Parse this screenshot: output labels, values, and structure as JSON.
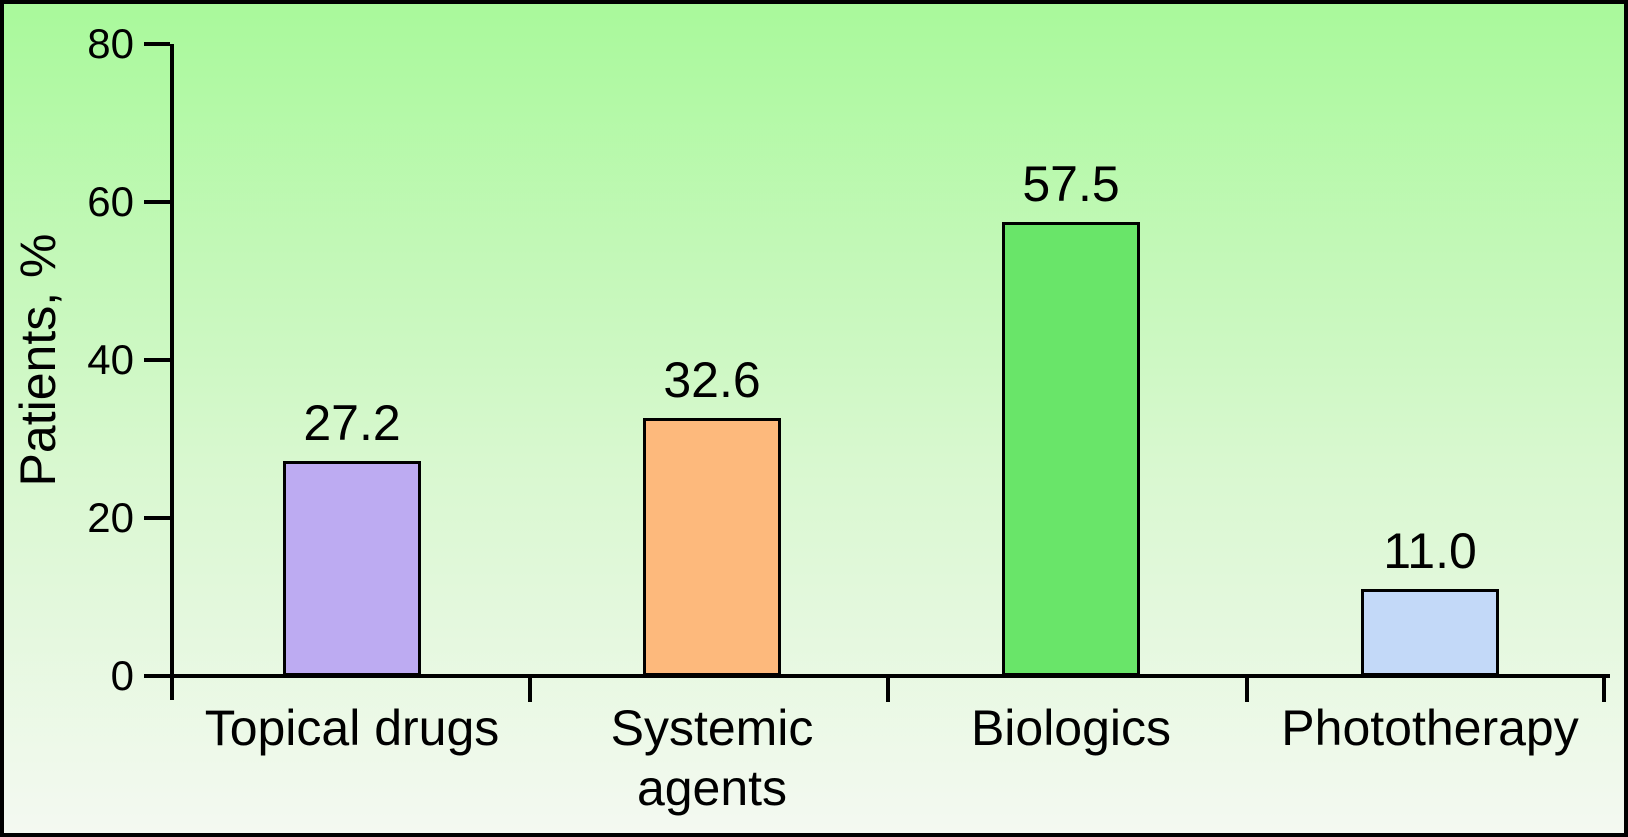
{
  "chart_data": {
    "type": "bar",
    "title": "",
    "xlabel": "",
    "ylabel": "Patients, %",
    "categories": [
      "Topical drugs",
      "Systemic agents",
      "Biologics",
      "Phototherapy"
    ],
    "values": [
      27.2,
      32.6,
      57.5,
      11.0
    ],
    "value_labels": [
      "27.2",
      "32.6",
      "57.5",
      "11.0"
    ],
    "ylim": [
      0,
      80
    ],
    "yticks": [
      0,
      20,
      40,
      60,
      80
    ],
    "ytick_labels": [
      "0",
      "20",
      "40",
      "60",
      "80"
    ],
    "grid": false,
    "legend": null,
    "bar_colors": [
      "#bdabf2",
      "#fdb97c",
      "#69e569",
      "#c3d9f8"
    ],
    "bar_border_color": "#000000",
    "axis_color": "#000000",
    "background_gradient_top": "#a9f99b",
    "background_gradient_bottom": "#f4f9f1",
    "frame_border_color": "#000000"
  }
}
